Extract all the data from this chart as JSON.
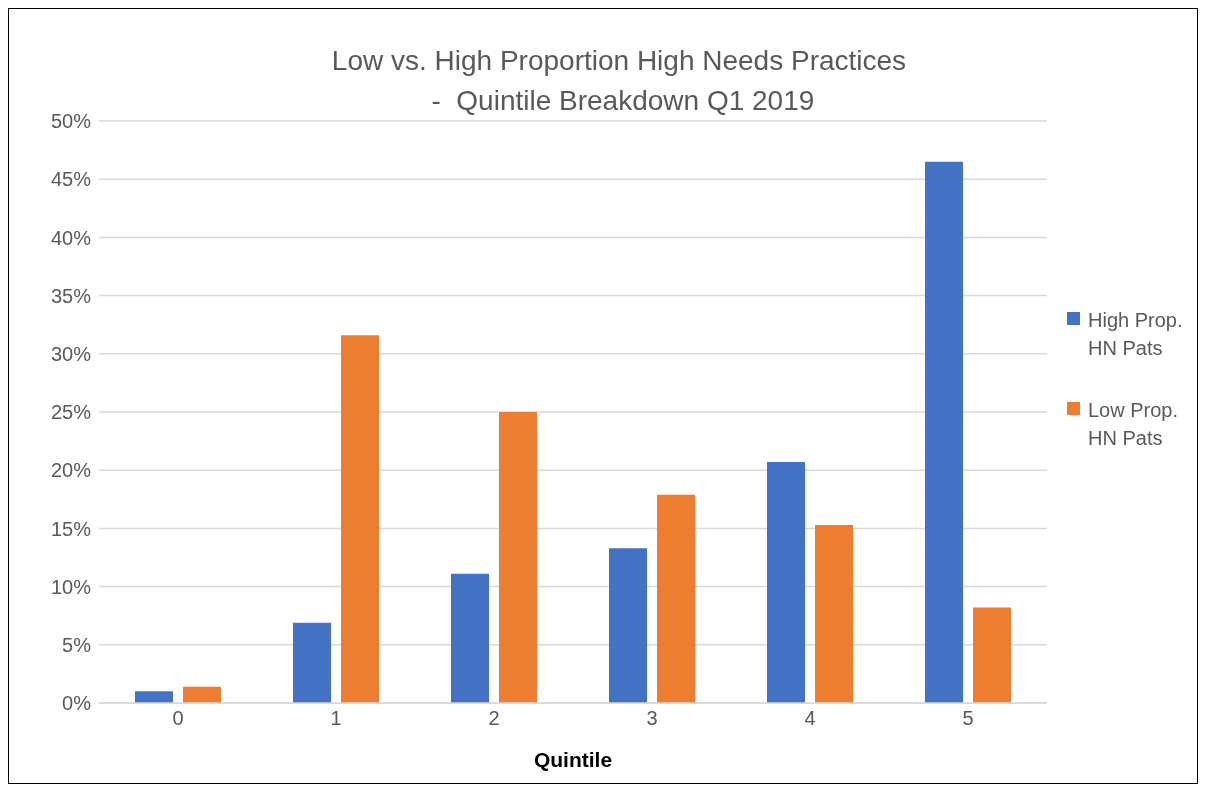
{
  "chart_data": {
    "type": "bar",
    "title": "Low vs. High Proportion High Needs Practices\n -  Quintile Breakdown Q1 2019",
    "xlabel": "Quintile",
    "categories": [
      "0",
      "1",
      "2",
      "3",
      "4",
      "5"
    ],
    "series": [
      {
        "name": "High Prop. HN Pats",
        "color": "#4472c4",
        "values": [
          1.0,
          6.9,
          11.1,
          13.3,
          20.7,
          46.5
        ]
      },
      {
        "name": "Low Prop. HN Pats",
        "color": "#ed7d31",
        "values": [
          1.4,
          31.6,
          25.0,
          17.9,
          15.3,
          8.2
        ]
      }
    ],
    "ylim": [
      0,
      50
    ],
    "yticks": [
      {
        "value": 0,
        "label": "0%"
      },
      {
        "value": 5,
        "label": "5%"
      },
      {
        "value": 10,
        "label": "10%"
      },
      {
        "value": 15,
        "label": "15%"
      },
      {
        "value": 20,
        "label": "20%"
      },
      {
        "value": 25,
        "label": "25%"
      },
      {
        "value": 30,
        "label": "30%"
      },
      {
        "value": 35,
        "label": "35%"
      },
      {
        "value": 40,
        "label": "40%"
      },
      {
        "value": 45,
        "label": "45%"
      },
      {
        "value": 50,
        "label": "50%"
      }
    ],
    "grid": "y",
    "legend": "right"
  }
}
